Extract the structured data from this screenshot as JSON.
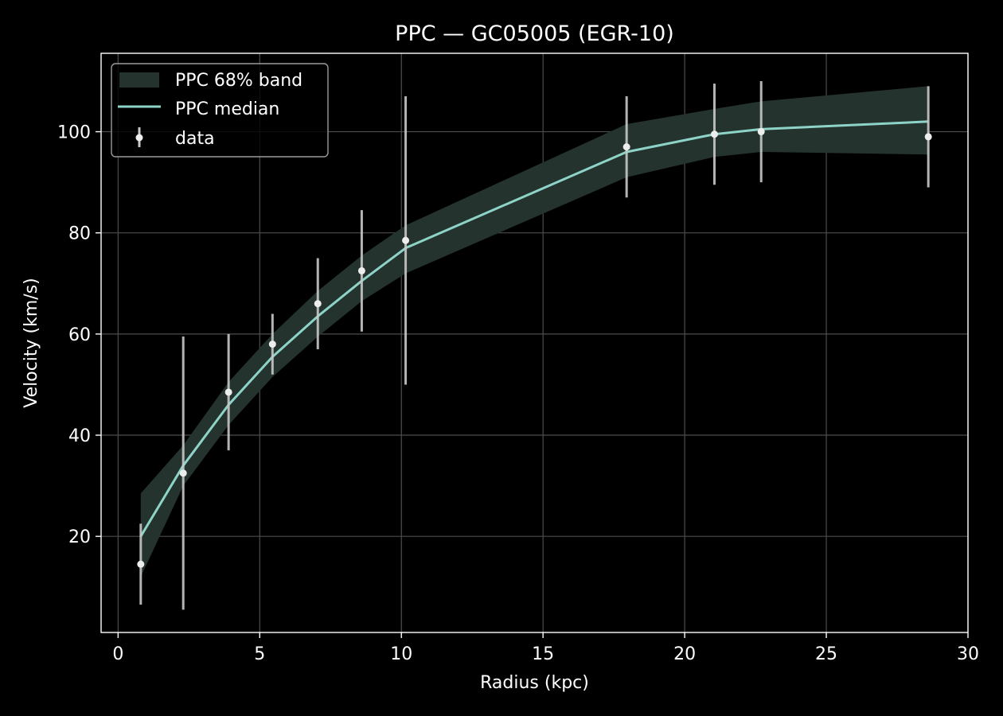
{
  "chart_data": {
    "type": "line",
    "title": "PPC — GC05005 (EGR-10)",
    "xlabel": "Radius (kpc)",
    "ylabel": "Velocity (km/s)",
    "xlim": [
      -0.6,
      30
    ],
    "ylim": [
      1,
      115.5
    ],
    "xticks": [
      0,
      5,
      10,
      15,
      20,
      25,
      30
    ],
    "yticks": [
      20,
      40,
      60,
      80,
      100
    ],
    "grid": true,
    "legend_position": "top-left",
    "legend": {
      "band_label": "PPC 68% band",
      "median_label": "PPC median",
      "data_label": "data"
    },
    "colors": {
      "background": "#000000",
      "band": "#25332f",
      "median": "#8dd3c7",
      "data_point": "#ededed",
      "errorbar": "#c8c8c8",
      "grid": "#4d4d4d",
      "axis": "#ffffff"
    },
    "series": [
      {
        "name": "PPC 68% band",
        "kind": "band",
        "x": [
          0.8,
          2.3,
          3.9,
          5.45,
          7.05,
          8.6,
          10.15,
          17.95,
          21.05,
          22.7,
          28.6
        ],
        "lower": [
          12,
          30,
          42,
          51.5,
          59.5,
          66.5,
          72,
          91,
          95,
          96,
          95.5
        ],
        "upper": [
          28.5,
          38,
          50.5,
          60,
          68.5,
          75.5,
          81.5,
          101.5,
          104.5,
          106,
          109
        ]
      },
      {
        "name": "PPC median",
        "kind": "line",
        "x": [
          0.8,
          2.3,
          3.9,
          5.45,
          7.05,
          8.6,
          10.15,
          17.95,
          21.05,
          22.7,
          28.6
        ],
        "y": [
          20,
          34,
          46,
          55.5,
          63.5,
          70.5,
          77,
          96,
          99.5,
          100.5,
          102
        ]
      },
      {
        "name": "data",
        "kind": "errorbar",
        "x": [
          0.8,
          2.3,
          3.9,
          5.45,
          7.05,
          8.6,
          10.15,
          17.95,
          21.05,
          22.7,
          28.6
        ],
        "y": [
          14.5,
          32.5,
          48.5,
          58,
          66,
          72.5,
          78.5,
          97,
          99.5,
          100,
          99
        ],
        "yerr": [
          8,
          27,
          11.5,
          6,
          9,
          12,
          28.5,
          10,
          10,
          10,
          10
        ]
      }
    ]
  }
}
